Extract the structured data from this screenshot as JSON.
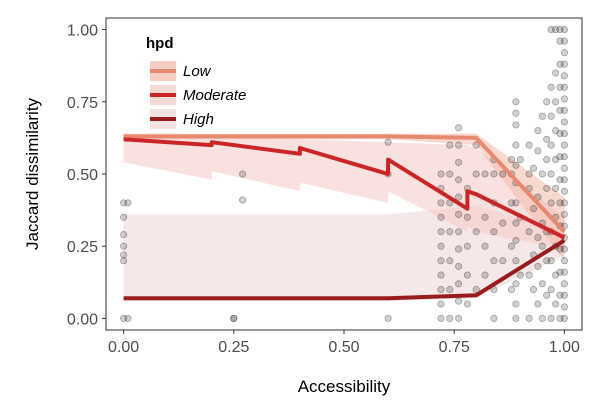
{
  "chart_data": {
    "type": "line",
    "xlabel": "Accessibility",
    "ylabel": "Jaccard dissimilarity",
    "xlim": [
      -0.04,
      1.04
    ],
    "ylim": [
      -0.04,
      1.04
    ],
    "xticks": [
      0.0,
      0.25,
      0.5,
      0.75,
      1.0
    ],
    "xtick_labels": [
      "0.00",
      "0.25",
      "0.50",
      "0.75",
      "1.00"
    ],
    "yticks": [
      0.0,
      0.25,
      0.5,
      0.75,
      1.0
    ],
    "ytick_labels": [
      "0.00",
      "0.25",
      "0.50",
      "0.75",
      "1.00"
    ],
    "grid": false,
    "legend": {
      "title": "hpd",
      "position": "top-left",
      "entries": [
        "Low",
        "Moderate",
        "High"
      ]
    },
    "series": [
      {
        "name": "Low",
        "color": "#e8896f",
        "band_color": "#f3b9a9",
        "x": [
          0.0,
          0.2,
          0.4,
          0.6,
          0.8,
          1.0
        ],
        "y": [
          0.63,
          0.63,
          0.63,
          0.63,
          0.625,
          0.3
        ],
        "lower": [
          0.62,
          0.62,
          0.62,
          0.62,
          0.6,
          0.2
        ],
        "upper": [
          0.64,
          0.64,
          0.64,
          0.64,
          0.64,
          0.42
        ]
      },
      {
        "name": "Moderate",
        "color": "#cc2528",
        "band_color": "#f4c9c6",
        "x": [
          0.0,
          0.1999,
          0.2,
          0.3999,
          0.4,
          0.5999,
          0.6,
          0.7799,
          0.78,
          0.7999,
          0.8,
          1.0
        ],
        "y": [
          0.62,
          0.6,
          0.61,
          0.57,
          0.59,
          0.5,
          0.55,
          0.38,
          0.44,
          0.43,
          0.43,
          0.28
        ],
        "lower": [
          0.54,
          0.48,
          0.51,
          0.44,
          0.47,
          0.4,
          0.44,
          0.3,
          0.32,
          0.3,
          0.3,
          0.24
        ],
        "upper": [
          0.63,
          0.63,
          0.63,
          0.62,
          0.62,
          0.61,
          0.61,
          0.6,
          0.6,
          0.59,
          0.59,
          0.35
        ]
      },
      {
        "name": "High",
        "color": "#981b1e",
        "band_color": "#ecd6d5",
        "x": [
          0.0,
          0.6,
          0.8,
          1.0
        ],
        "y": [
          0.07,
          0.07,
          0.08,
          0.27
        ],
        "lower": [
          0.06,
          0.06,
          0.07,
          0.22
        ],
        "upper": [
          0.36,
          0.36,
          0.39,
          0.3
        ]
      }
    ],
    "points": [
      [
        0.0,
        0.0
      ],
      [
        0.0,
        0.2
      ],
      [
        0.0,
        0.22
      ],
      [
        0.0,
        0.25
      ],
      [
        0.0,
        0.29
      ],
      [
        0.0,
        0.35
      ],
      [
        0.0,
        0.4
      ],
      [
        0.01,
        0.0
      ],
      [
        0.01,
        0.4
      ],
      [
        0.25,
        0.0
      ],
      [
        0.25,
        0.0
      ],
      [
        0.27,
        0.41
      ],
      [
        0.27,
        0.5
      ],
      [
        0.6,
        0.0
      ],
      [
        0.6,
        0.5
      ],
      [
        0.6,
        0.61
      ],
      [
        0.72,
        0.0
      ],
      [
        0.72,
        0.05
      ],
      [
        0.72,
        0.1
      ],
      [
        0.72,
        0.15
      ],
      [
        0.72,
        0.2
      ],
      [
        0.72,
        0.25
      ],
      [
        0.72,
        0.3
      ],
      [
        0.72,
        0.35
      ],
      [
        0.72,
        0.4
      ],
      [
        0.72,
        0.45
      ],
      [
        0.72,
        0.5
      ],
      [
        0.74,
        0.0
      ],
      [
        0.74,
        0.1
      ],
      [
        0.74,
        0.2
      ],
      [
        0.74,
        0.3
      ],
      [
        0.74,
        0.4
      ],
      [
        0.74,
        0.5
      ],
      [
        0.74,
        0.6
      ],
      [
        0.76,
        0.0
      ],
      [
        0.76,
        0.06
      ],
      [
        0.76,
        0.12
      ],
      [
        0.76,
        0.18
      ],
      [
        0.76,
        0.24
      ],
      [
        0.76,
        0.3
      ],
      [
        0.76,
        0.36
      ],
      [
        0.76,
        0.42
      ],
      [
        0.76,
        0.48
      ],
      [
        0.76,
        0.54
      ],
      [
        0.76,
        0.6
      ],
      [
        0.76,
        0.66
      ],
      [
        0.78,
        0.05
      ],
      [
        0.78,
        0.15
      ],
      [
        0.78,
        0.25
      ],
      [
        0.78,
        0.35
      ],
      [
        0.78,
        0.45
      ],
      [
        0.8,
        0.1
      ],
      [
        0.8,
        0.3
      ],
      [
        0.8,
        0.5
      ],
      [
        0.8,
        0.6
      ],
      [
        0.82,
        0.15
      ],
      [
        0.82,
        0.25
      ],
      [
        0.82,
        0.35
      ],
      [
        0.82,
        0.5
      ],
      [
        0.84,
        0.0
      ],
      [
        0.84,
        0.1
      ],
      [
        0.84,
        0.2
      ],
      [
        0.84,
        0.3
      ],
      [
        0.84,
        0.4
      ],
      [
        0.84,
        0.5
      ],
      [
        0.84,
        0.55
      ],
      [
        0.86,
        0.2
      ],
      [
        0.86,
        0.33
      ],
      [
        0.86,
        0.5
      ],
      [
        0.88,
        0.1
      ],
      [
        0.88,
        0.25
      ],
      [
        0.88,
        0.4
      ],
      [
        0.88,
        0.5
      ],
      [
        0.88,
        0.55
      ],
      [
        0.89,
        0.0
      ],
      [
        0.89,
        0.05
      ],
      [
        0.89,
        0.12
      ],
      [
        0.89,
        0.2
      ],
      [
        0.89,
        0.27
      ],
      [
        0.89,
        0.33
      ],
      [
        0.89,
        0.4
      ],
      [
        0.89,
        0.47
      ],
      [
        0.89,
        0.53
      ],
      [
        0.89,
        0.6
      ],
      [
        0.89,
        0.67
      ],
      [
        0.89,
        0.71
      ],
      [
        0.89,
        0.75
      ],
      [
        0.9,
        0.15
      ],
      [
        0.9,
        0.35
      ],
      [
        0.9,
        0.55
      ],
      [
        0.92,
        0.0
      ],
      [
        0.92,
        0.15
      ],
      [
        0.92,
        0.3
      ],
      [
        0.92,
        0.45
      ],
      [
        0.92,
        0.5
      ],
      [
        0.92,
        0.6
      ],
      [
        0.93,
        0.1
      ],
      [
        0.93,
        0.22
      ],
      [
        0.93,
        0.38
      ],
      [
        0.93,
        0.52
      ],
      [
        0.94,
        0.05
      ],
      [
        0.94,
        0.18
      ],
      [
        0.94,
        0.28
      ],
      [
        0.94,
        0.42
      ],
      [
        0.94,
        0.58
      ],
      [
        0.94,
        0.65
      ],
      [
        0.95,
        0.0
      ],
      [
        0.95,
        0.12
      ],
      [
        0.95,
        0.25
      ],
      [
        0.95,
        0.33
      ],
      [
        0.95,
        0.5
      ],
      [
        0.95,
        0.7
      ],
      [
        0.96,
        0.08
      ],
      [
        0.96,
        0.2
      ],
      [
        0.96,
        0.3
      ],
      [
        0.96,
        0.45
      ],
      [
        0.96,
        0.55
      ],
      [
        0.96,
        0.62
      ],
      [
        0.96,
        0.75
      ],
      [
        0.97,
        0.0
      ],
      [
        0.97,
        0.1
      ],
      [
        0.97,
        0.2
      ],
      [
        0.97,
        0.3
      ],
      [
        0.97,
        0.4
      ],
      [
        0.97,
        0.5
      ],
      [
        0.97,
        0.6
      ],
      [
        0.97,
        0.7
      ],
      [
        0.97,
        0.8
      ],
      [
        0.97,
        1.0
      ],
      [
        0.98,
        0.05
      ],
      [
        0.98,
        0.15
      ],
      [
        0.98,
        0.25
      ],
      [
        0.98,
        0.35
      ],
      [
        0.98,
        0.45
      ],
      [
        0.98,
        0.55
      ],
      [
        0.98,
        0.65
      ],
      [
        0.98,
        0.75
      ],
      [
        0.98,
        0.85
      ],
      [
        0.98,
        1.0
      ],
      [
        0.99,
        0.0
      ],
      [
        0.99,
        0.08
      ],
      [
        0.99,
        0.16
      ],
      [
        0.99,
        0.24
      ],
      [
        0.99,
        0.32
      ],
      [
        0.99,
        0.4
      ],
      [
        0.99,
        0.48
      ],
      [
        0.99,
        0.56
      ],
      [
        0.99,
        0.64
      ],
      [
        0.99,
        0.72
      ],
      [
        0.99,
        0.8
      ],
      [
        0.99,
        0.88
      ],
      [
        0.99,
        0.96
      ],
      [
        0.99,
        1.0
      ],
      [
        1.0,
        0.0
      ],
      [
        1.0,
        0.04
      ],
      [
        1.0,
        0.08
      ],
      [
        1.0,
        0.12
      ],
      [
        1.0,
        0.16
      ],
      [
        1.0,
        0.2
      ],
      [
        1.0,
        0.24
      ],
      [
        1.0,
        0.28
      ],
      [
        1.0,
        0.32
      ],
      [
        1.0,
        0.36
      ],
      [
        1.0,
        0.4
      ],
      [
        1.0,
        0.44
      ],
      [
        1.0,
        0.48
      ],
      [
        1.0,
        0.52
      ],
      [
        1.0,
        0.56
      ],
      [
        1.0,
        0.6
      ],
      [
        1.0,
        0.64
      ],
      [
        1.0,
        0.68
      ],
      [
        1.0,
        0.72
      ],
      [
        1.0,
        0.76
      ],
      [
        1.0,
        0.8
      ],
      [
        1.0,
        0.84
      ],
      [
        1.0,
        0.88
      ],
      [
        1.0,
        0.92
      ],
      [
        1.0,
        0.96
      ],
      [
        1.0,
        1.0
      ]
    ]
  }
}
